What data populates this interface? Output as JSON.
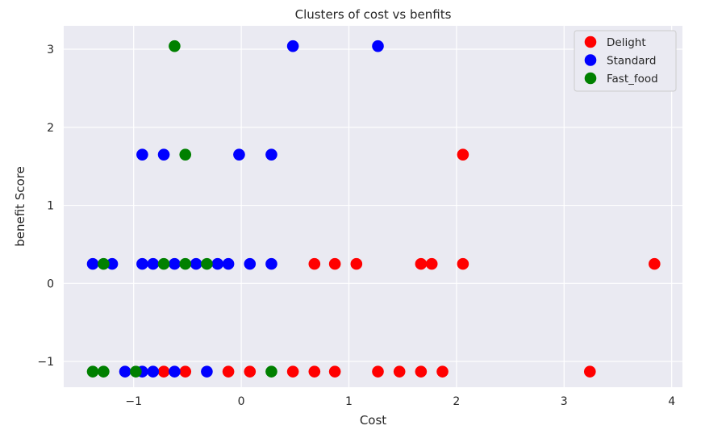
{
  "chart_data": {
    "type": "scatter",
    "title": "Clusters of cost vs benfits",
    "xlabel": "Cost",
    "ylabel": "benefit Score",
    "xlim": [
      -1.65,
      4.1
    ],
    "ylim": [
      -1.33,
      3.3
    ],
    "xticks": [
      -1,
      0,
      1,
      2,
      3,
      4
    ],
    "xtick_labels": [
      "−1",
      "0",
      "1",
      "2",
      "3",
      "4"
    ],
    "yticks": [
      -1,
      0,
      1,
      2,
      3
    ],
    "ytick_labels": [
      "−1",
      "0",
      "1",
      "2",
      "3"
    ],
    "grid": true,
    "legend_position": "top-right",
    "series": [
      {
        "name": "Delight",
        "color": "#ff0000",
        "points": [
          {
            "x": -0.72,
            "y": -1.13
          },
          {
            "x": -0.52,
            "y": -1.13
          },
          {
            "x": -0.12,
            "y": -1.13
          },
          {
            "x": 0.08,
            "y": -1.13
          },
          {
            "x": 0.48,
            "y": -1.13
          },
          {
            "x": 0.68,
            "y": -1.13
          },
          {
            "x": 0.87,
            "y": -1.13
          },
          {
            "x": 1.27,
            "y": -1.13
          },
          {
            "x": 1.47,
            "y": -1.13
          },
          {
            "x": 1.67,
            "y": -1.13
          },
          {
            "x": 1.87,
            "y": -1.13
          },
          {
            "x": 3.24,
            "y": -1.13
          },
          {
            "x": 0.68,
            "y": 0.25
          },
          {
            "x": 0.87,
            "y": 0.25
          },
          {
            "x": 1.07,
            "y": 0.25
          },
          {
            "x": 1.67,
            "y": 0.25
          },
          {
            "x": 1.77,
            "y": 0.25
          },
          {
            "x": 2.06,
            "y": 0.25
          },
          {
            "x": 3.84,
            "y": 0.25
          },
          {
            "x": 2.06,
            "y": 1.65
          }
        ]
      },
      {
        "name": "Standard",
        "color": "#0000ff",
        "points": [
          {
            "x": -1.08,
            "y": -1.13
          },
          {
            "x": -0.92,
            "y": -1.13
          },
          {
            "x": -0.82,
            "y": -1.13
          },
          {
            "x": -0.62,
            "y": -1.13
          },
          {
            "x": -0.32,
            "y": -1.13
          },
          {
            "x": -1.38,
            "y": 0.25
          },
          {
            "x": -1.2,
            "y": 0.25
          },
          {
            "x": -0.92,
            "y": 0.25
          },
          {
            "x": -0.82,
            "y": 0.25
          },
          {
            "x": -0.62,
            "y": 0.25
          },
          {
            "x": -0.42,
            "y": 0.25
          },
          {
            "x": -0.22,
            "y": 0.25
          },
          {
            "x": -0.12,
            "y": 0.25
          },
          {
            "x": 0.08,
            "y": 0.25
          },
          {
            "x": 0.28,
            "y": 0.25
          },
          {
            "x": -0.92,
            "y": 1.65
          },
          {
            "x": -0.72,
            "y": 1.65
          },
          {
            "x": -0.02,
            "y": 1.65
          },
          {
            "x": 0.28,
            "y": 1.65
          },
          {
            "x": 0.48,
            "y": 3.04
          },
          {
            "x": 1.27,
            "y": 3.04
          }
        ]
      },
      {
        "name": "Fast_food",
        "color": "#008000",
        "points": [
          {
            "x": -1.38,
            "y": -1.13
          },
          {
            "x": -1.28,
            "y": -1.13
          },
          {
            "x": -0.98,
            "y": -1.13
          },
          {
            "x": 0.28,
            "y": -1.13
          },
          {
            "x": -1.28,
            "y": 0.25
          },
          {
            "x": -0.72,
            "y": 0.25
          },
          {
            "x": -0.52,
            "y": 0.25
          },
          {
            "x": -0.32,
            "y": 0.25
          },
          {
            "x": -0.52,
            "y": 1.65
          },
          {
            "x": -0.62,
            "y": 3.04
          }
        ]
      }
    ]
  }
}
